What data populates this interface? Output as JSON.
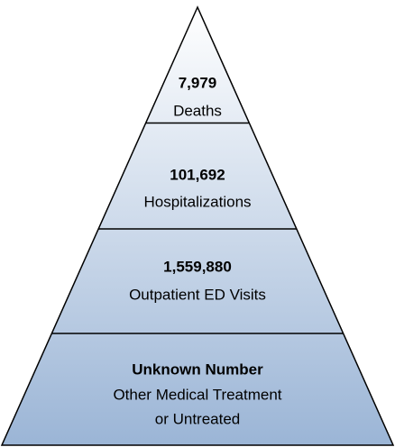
{
  "levels": [
    {
      "value": "7,979",
      "lines": [
        "Deaths"
      ]
    },
    {
      "value": "101,692",
      "lines": [
        "Hospitalizations"
      ]
    },
    {
      "value": "1,559,880",
      "lines": [
        "Outpatient ED Visits"
      ]
    },
    {
      "value": "Unknown Number",
      "lines": [
        "Other Medical Treatment",
        "or Untreated"
      ]
    }
  ]
}
